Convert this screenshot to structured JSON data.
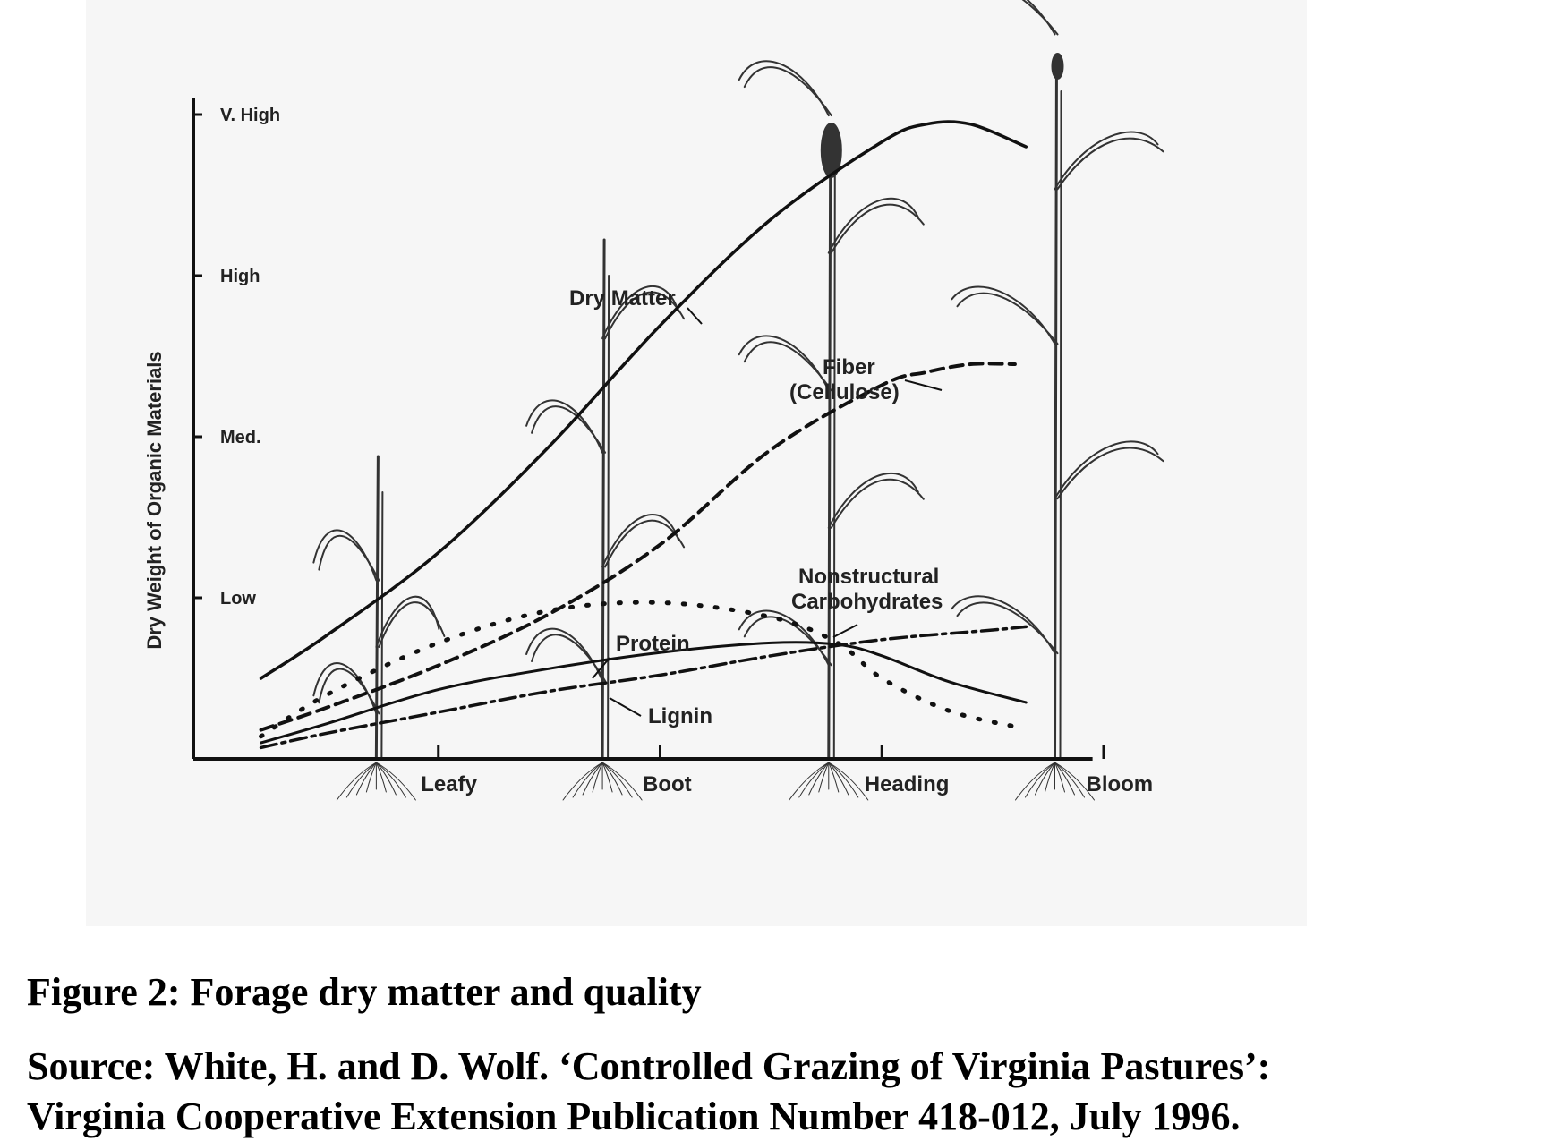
{
  "figure": {
    "caption": "Figure 2: Forage dry matter and quality",
    "source_line1": "Source:  White, H. and D. Wolf. ‘Controlled Grazing of Virginia Pastures’:",
    "source_line2": "Virginia Cooperative Extension Publication Number 418-012, July 1996."
  },
  "chart_data": {
    "type": "line",
    "title": "",
    "xlabel": "",
    "ylabel": "Dry Weight of Organic Materials",
    "categories": [
      "Leafy",
      "Boot",
      "Heading",
      "Bloom"
    ],
    "y_tick_labels": [
      "Low",
      "Med.",
      "High",
      "V. High"
    ],
    "ylim": [
      0,
      4
    ],
    "grid": false,
    "legend": "none",
    "series": [
      {
        "name": "Dry Matter",
        "style": "solid",
        "x": [
          0.2,
          0.5,
          1.0,
          1.5,
          2.0,
          2.5,
          3.0,
          3.2,
          3.4,
          3.65
        ],
        "y": [
          0.5,
          0.77,
          1.28,
          1.94,
          2.69,
          3.35,
          3.83,
          3.94,
          3.94,
          3.8
        ]
      },
      {
        "name": "Fiber (Cellulose)",
        "style": "dashed",
        "x": [
          0.2,
          0.5,
          1.0,
          1.5,
          2.0,
          2.5,
          3.0,
          3.2,
          3.4,
          3.6
        ],
        "y": [
          0.18,
          0.32,
          0.58,
          0.9,
          1.33,
          1.92,
          2.32,
          2.4,
          2.45,
          2.45
        ]
      },
      {
        "name": "Nonstructural Carbohydrates",
        "style": "dotted",
        "x": [
          0.2,
          0.5,
          1.0,
          1.5,
          2.0,
          2.5,
          2.8,
          3.0,
          3.3,
          3.6
        ],
        "y": [
          0.14,
          0.4,
          0.72,
          0.92,
          0.97,
          0.88,
          0.72,
          0.5,
          0.3,
          0.2
        ]
      },
      {
        "name": "Protein",
        "style": "solid",
        "x": [
          0.2,
          0.5,
          1.0,
          1.5,
          2.0,
          2.5,
          2.8,
          3.0,
          3.3,
          3.65
        ],
        "y": [
          0.1,
          0.22,
          0.43,
          0.56,
          0.66,
          0.72,
          0.71,
          0.64,
          0.48,
          0.35
        ]
      },
      {
        "name": "Lignin",
        "style": "dashdot",
        "x": [
          0.2,
          0.5,
          1.0,
          1.5,
          2.0,
          2.5,
          3.0,
          3.5,
          3.65
        ],
        "y": [
          0.07,
          0.16,
          0.29,
          0.42,
          0.52,
          0.64,
          0.74,
          0.8,
          0.82
        ]
      }
    ],
    "annotations": [
      {
        "text": "Dry Matter",
        "points_to": "Dry Matter"
      },
      {
        "text": "Fiber",
        "points_to": "Fiber (Cellulose)"
      },
      {
        "text": "(Cellulose)",
        "points_to": "Fiber (Cellulose)"
      },
      {
        "text": "Nonstructural",
        "points_to": "Nonstructural Carbohydrates"
      },
      {
        "text": "Carbohydrates",
        "points_to": "Nonstructural Carbohydrates"
      },
      {
        "text": "Protein",
        "points_to": "Protein"
      },
      {
        "text": "Lignin",
        "points_to": "Lignin"
      }
    ],
    "illustration": "grass plant drawn at each growth stage (leafy, boot, heading, bloom)"
  }
}
